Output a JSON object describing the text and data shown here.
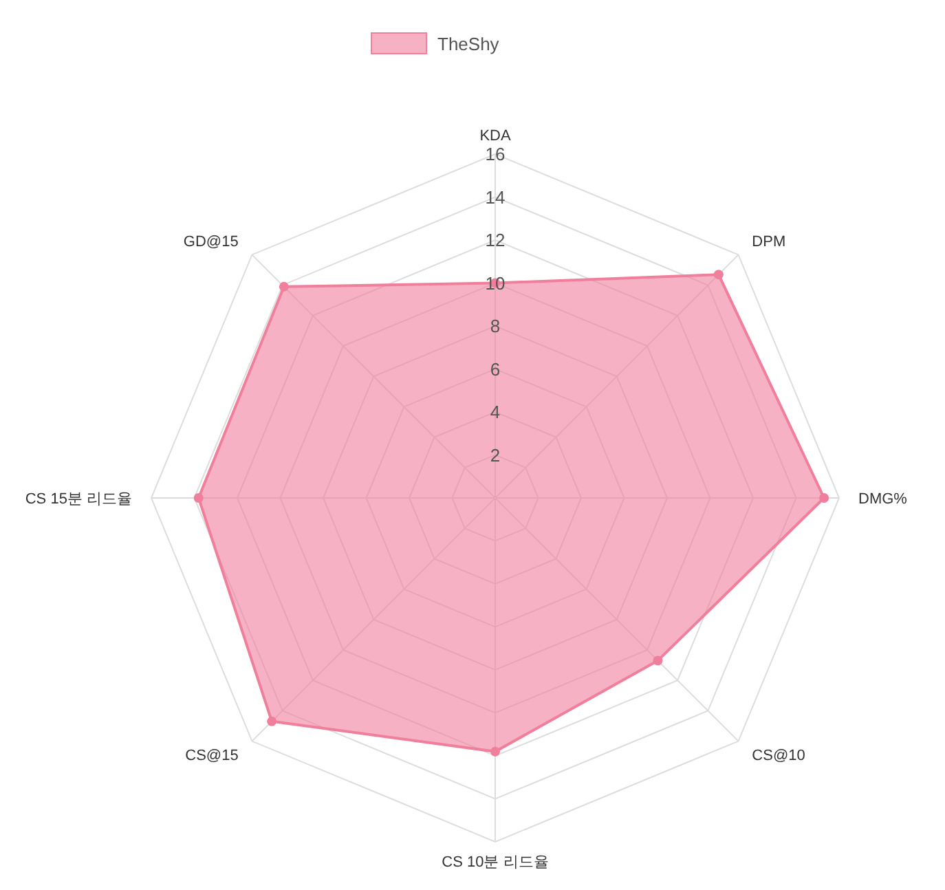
{
  "chart_data": {
    "type": "radar",
    "categories": [
      "KDA",
      "DPM",
      "DMG%",
      "CS@10",
      "CS 10분 리드율",
      "CS@15",
      "CS 15분 리드율",
      "GD@15"
    ],
    "series": [
      {
        "name": "TheShy",
        "color": "#f07f9c",
        "values": [
          10,
          14.7,
          15.3,
          10.7,
          11.8,
          14.7,
          13.8,
          13.9
        ]
      }
    ],
    "ylim": [
      0,
      16
    ],
    "yticks": [
      2,
      4,
      6,
      8,
      10,
      12,
      14,
      16
    ],
    "grid": true,
    "legend": "top",
    "marker": "circle"
  }
}
